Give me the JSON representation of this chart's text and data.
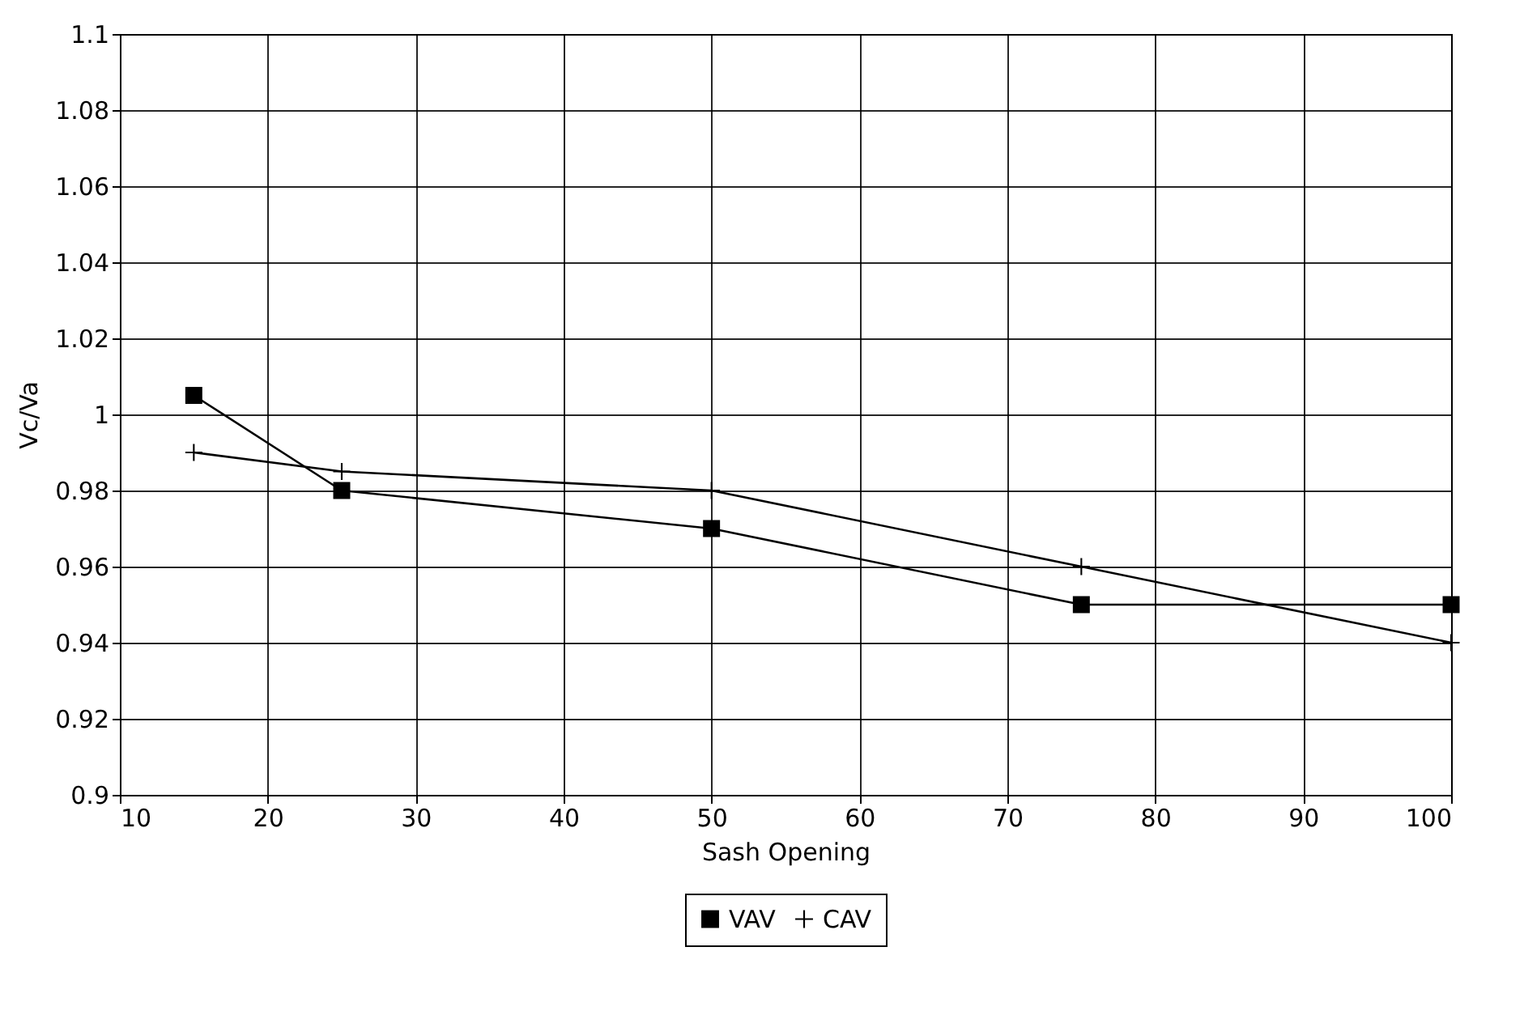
{
  "chart_data": {
    "type": "line",
    "xlabel": "Sash Opening",
    "ylabel": "Vc/Va",
    "x": [
      15,
      25,
      50,
      75,
      100
    ],
    "series": [
      {
        "name": "VAV",
        "color": "#000000",
        "marker": "square",
        "values": [
          1.005,
          0.98,
          0.97,
          0.95,
          0.95
        ]
      },
      {
        "name": "CAV",
        "color": "#000000",
        "marker": "cross",
        "values": [
          0.99,
          0.985,
          0.98,
          0.96,
          0.94
        ]
      }
    ],
    "xlim": [
      10,
      100
    ],
    "xticks": [
      10,
      20,
      30,
      40,
      50,
      60,
      70,
      80,
      90,
      100
    ],
    "ylim": [
      0.9,
      1.1
    ],
    "yticks": [
      0.9,
      0.92,
      0.94,
      0.96,
      0.98,
      1,
      1.02,
      1.04,
      1.06,
      1.08,
      1.1
    ],
    "grid": true,
    "legend": "bottom",
    "line_style": "solid"
  }
}
